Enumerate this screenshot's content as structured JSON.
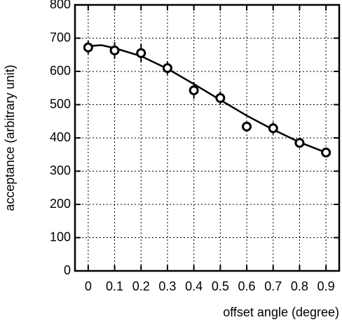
{
  "chart_data": {
    "type": "scatter",
    "x_label": "offset angle (degree)",
    "y_label": "acceptance (arbitrary unit)",
    "x": [
      0,
      0.1,
      0.2,
      0.3,
      0.4,
      0.5,
      0.6,
      0.7,
      0.8,
      0.9
    ],
    "series": [
      {
        "color": "#000000",
        "values": [
          672,
          663,
          655,
          610,
          543,
          520,
          434,
          429,
          385,
          356
        ],
        "errors": [
          20,
          25,
          28,
          20,
          25,
          20,
          15,
          18,
          15,
          15
        ]
      }
    ],
    "fit": {
      "color": "#000000",
      "x": [
        0,
        0.05,
        0.1,
        0.2,
        0.3,
        0.4,
        0.5,
        0.6,
        0.7,
        0.8,
        0.9
      ],
      "values": [
        676,
        679,
        670,
        646,
        608,
        562,
        514,
        467,
        425,
        387,
        356
      ]
    },
    "xlim": [
      -0.05,
      0.95
    ],
    "ylim": [
      0,
      800
    ],
    "xticks": [
      0,
      0.1,
      0.2,
      0.3,
      0.4,
      0.5,
      0.6,
      0.7,
      0.8,
      0.9
    ],
    "yticks": [
      0,
      100,
      200,
      300,
      400,
      500,
      600,
      700,
      800
    ],
    "grid": true
  }
}
